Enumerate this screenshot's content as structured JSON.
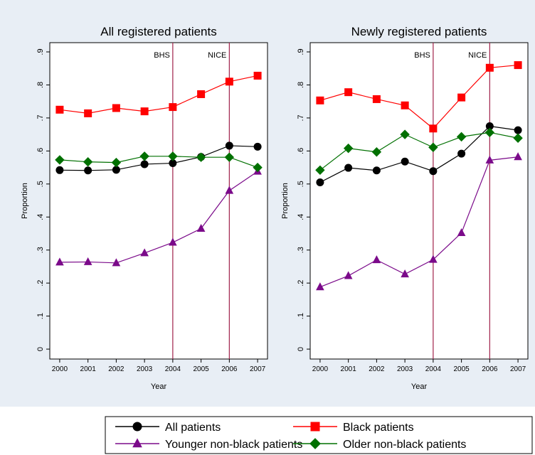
{
  "chart_data": [
    {
      "type": "line",
      "title": "All registered patients",
      "xlabel": "Year",
      "ylabel": "Proportion",
      "x": [
        2000,
        2001,
        2002,
        2003,
        2004,
        2005,
        2006,
        2007
      ],
      "xlim": [
        1999.65,
        2007.35
      ],
      "xticks": [
        2000,
        2001,
        2002,
        2003,
        2004,
        2005,
        2006,
        2007
      ],
      "ylim": [
        -0.03,
        0.928
      ],
      "yticks": [
        0,
        {
          "value": 0.1,
          "label": ".1"
        },
        {
          "value": 0.2,
          "label": ".2"
        },
        {
          "value": 0.3,
          "label": ".3"
        },
        {
          "value": 0.4,
          "label": ".4"
        },
        {
          "value": 0.5,
          "label": ".5"
        },
        {
          "value": 0.6,
          "label": ".6"
        },
        {
          "value": 0.7,
          "label": ".7"
        },
        {
          "value": 0.8,
          "label": ".8"
        },
        {
          "value": 0.9,
          "label": ".9"
        }
      ],
      "annotations": [
        {
          "x": 2004,
          "text": "BHS"
        },
        {
          "x": 2006,
          "text": "NICE"
        }
      ],
      "series": [
        {
          "values": [
            0.542,
            0.541,
            0.543,
            0.56,
            0.563,
            0.582,
            0.616,
            0.613
          ]
        },
        {
          "values": [
            0.725,
            0.714,
            0.73,
            0.72,
            0.733,
            0.772,
            0.81,
            0.828
          ]
        },
        {
          "values": [
            0.263,
            0.264,
            0.261,
            0.291,
            0.323,
            0.365,
            0.48,
            0.538
          ]
        },
        {
          "values": [
            0.573,
            0.567,
            0.565,
            0.584,
            0.584,
            0.581,
            0.581,
            0.55
          ]
        }
      ]
    },
    {
      "type": "line",
      "title": "Newly registered patients",
      "xlabel": "Year",
      "ylabel": "Proportion",
      "x": [
        2000,
        2001,
        2002,
        2003,
        2004,
        2005,
        2006,
        2007
      ],
      "xlim": [
        1999.65,
        2007.35
      ],
      "xticks": [
        2000,
        2001,
        2002,
        2003,
        2004,
        2005,
        2006,
        2007
      ],
      "ylim": [
        -0.03,
        0.928
      ],
      "yticks": [
        0,
        {
          "value": 0.1,
          "label": ".1"
        },
        {
          "value": 0.2,
          "label": ".2"
        },
        {
          "value": 0.3,
          "label": ".3"
        },
        {
          "value": 0.4,
          "label": ".4"
        },
        {
          "value": 0.5,
          "label": ".5"
        },
        {
          "value": 0.6,
          "label": ".6"
        },
        {
          "value": 0.7,
          "label": ".7"
        },
        {
          "value": 0.8,
          "label": ".8"
        },
        {
          "value": 0.9,
          "label": ".9"
        }
      ],
      "annotations": [
        {
          "x": 2004,
          "text": "BHS"
        },
        {
          "x": 2006,
          "text": "NICE"
        }
      ],
      "series": [
        {
          "values": [
            0.505,
            0.549,
            0.541,
            0.568,
            0.539,
            0.592,
            0.675,
            0.663
          ]
        },
        {
          "values": [
            0.753,
            0.778,
            0.757,
            0.738,
            0.668,
            0.762,
            0.852,
            0.86
          ]
        },
        {
          "values": [
            0.188,
            0.222,
            0.27,
            0.227,
            0.271,
            0.352,
            0.572,
            0.582
          ]
        },
        {
          "values": [
            0.542,
            0.608,
            0.597,
            0.65,
            0.611,
            0.643,
            0.656,
            0.639
          ]
        }
      ]
    }
  ],
  "legend": {
    "annotation_color": "#a0224a",
    "entries": [
      {
        "name": "All patients",
        "color": "#000000",
        "marker": "circle"
      },
      {
        "name": "Black patients",
        "color": "#ff0000",
        "marker": "square"
      },
      {
        "name": "Younger non-black patients",
        "color": "#7b0a8a",
        "marker": "triangle"
      },
      {
        "name": "Older non-black patients",
        "color": "#007000",
        "marker": "diamond"
      }
    ]
  }
}
